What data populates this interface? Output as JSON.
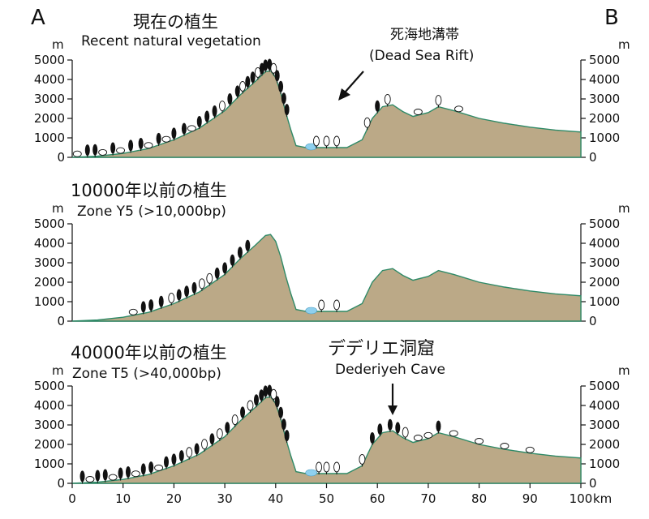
{
  "labels": {
    "left_letter": "A",
    "right_letter": "B",
    "x_unit": "km",
    "y_unit": "m"
  },
  "panels": [
    {
      "title_jp": "現在の植生",
      "title_en": "Recent natural vegetation",
      "annotation_jp": "死海地溝帯",
      "annotation_en": "(Dead Sea Rift)"
    },
    {
      "title_jp": "10000年以前の植生",
      "title_en": "Zone Y5 (>10,000bp)"
    },
    {
      "title_jp": "40000年以前の植生",
      "title_en": "Zone T5 (>40,000bp)",
      "annotation_jp": "デデリエ洞窟",
      "annotation_en": "Dederiyeh Cave"
    }
  ],
  "chart_data": {
    "type": "area",
    "xlabel": "km",
    "ylabel": "m",
    "xlim": [
      0,
      100
    ],
    "ylim": [
      0,
      5000
    ],
    "x_ticks": [
      "0",
      "10",
      "20",
      "30",
      "40",
      "50",
      "60",
      "70",
      "80",
      "90",
      "100"
    ],
    "y_ticks": [
      "0",
      "1000",
      "2000",
      "3000",
      "4000",
      "5000"
    ],
    "profile": {
      "x": [
        0,
        5,
        10,
        15,
        20,
        25,
        30,
        33,
        36,
        38,
        39,
        40,
        41,
        42,
        43,
        44,
        46,
        48,
        50,
        54,
        57,
        59,
        61,
        63,
        65,
        67,
        70,
        72,
        75,
        80,
        85,
        90,
        95,
        100
      ],
      "elevation": [
        0,
        60,
        200,
        450,
        900,
        1500,
        2400,
        3200,
        3900,
        4400,
        4450,
        4100,
        3300,
        2300,
        1400,
        600,
        500,
        500,
        500,
        500,
        900,
        2000,
        2600,
        2700,
        2350,
        2100,
        2300,
        2600,
        2400,
        2000,
        1750,
        1550,
        1400,
        1300
      ]
    },
    "water_x": [
      47
    ]
  },
  "colors": {
    "terrain": "#bba987",
    "terrain_outline": "#2f8a67",
    "water": "#8fd0ee",
    "deciduous_tree": "#ffffff",
    "conifer_tree": "#111111"
  },
  "vegetation": {
    "panel_1": [
      {
        "x": 1,
        "type": "shrub"
      },
      {
        "x": 3,
        "type": "conifer"
      },
      {
        "x": 4.5,
        "type": "conifer"
      },
      {
        "x": 6,
        "type": "shrub"
      },
      {
        "x": 8,
        "type": "conifer"
      },
      {
        "x": 9.5,
        "type": "shrub"
      },
      {
        "x": 11.5,
        "type": "conifer"
      },
      {
        "x": 13.5,
        "type": "conifer"
      },
      {
        "x": 15,
        "type": "shrub"
      },
      {
        "x": 17,
        "type": "conifer"
      },
      {
        "x": 18.5,
        "type": "shrub"
      },
      {
        "x": 20,
        "type": "conifer"
      },
      {
        "x": 22,
        "type": "conifer"
      },
      {
        "x": 23.5,
        "type": "shrub"
      },
      {
        "x": 25,
        "type": "conifer"
      },
      {
        "x": 26.5,
        "type": "conifer"
      },
      {
        "x": 28,
        "type": "conifer"
      },
      {
        "x": 29.5,
        "type": "deciduous"
      },
      {
        "x": 31,
        "type": "conifer"
      },
      {
        "x": 32.5,
        "type": "conifer"
      },
      {
        "x": 33.5,
        "type": "deciduous"
      },
      {
        "x": 34.5,
        "type": "conifer"
      },
      {
        "x": 35.5,
        "type": "conifer"
      },
      {
        "x": 36.5,
        "type": "deciduous"
      },
      {
        "x": 37.3,
        "type": "conifer"
      },
      {
        "x": 38,
        "type": "conifer"
      },
      {
        "x": 38.8,
        "type": "conifer"
      },
      {
        "x": 39.6,
        "type": "deciduous"
      },
      {
        "x": 40.3,
        "type": "conifer"
      },
      {
        "x": 41,
        "type": "conifer"
      },
      {
        "x": 41.6,
        "type": "conifer"
      },
      {
        "x": 42.2,
        "type": "conifer"
      },
      {
        "x": 48,
        "type": "deciduous"
      },
      {
        "x": 50,
        "type": "deciduous"
      },
      {
        "x": 52,
        "type": "deciduous"
      },
      {
        "x": 58,
        "type": "deciduous"
      },
      {
        "x": 60,
        "type": "conifer"
      },
      {
        "x": 62,
        "type": "deciduous"
      },
      {
        "x": 68,
        "type": "shrub"
      },
      {
        "x": 72,
        "type": "deciduous"
      },
      {
        "x": 76,
        "type": "shrub"
      }
    ],
    "panel_2": [
      {
        "x": 12,
        "type": "shrub"
      },
      {
        "x": 14,
        "type": "conifer"
      },
      {
        "x": 15.5,
        "type": "conifer"
      },
      {
        "x": 17.5,
        "type": "conifer"
      },
      {
        "x": 19.5,
        "type": "deciduous"
      },
      {
        "x": 21,
        "type": "conifer"
      },
      {
        "x": 22.5,
        "type": "conifer"
      },
      {
        "x": 24,
        "type": "conifer"
      },
      {
        "x": 25.5,
        "type": "deciduous"
      },
      {
        "x": 27,
        "type": "deciduous"
      },
      {
        "x": 28.5,
        "type": "conifer"
      },
      {
        "x": 30,
        "type": "conifer"
      },
      {
        "x": 31.5,
        "type": "conifer"
      },
      {
        "x": 33,
        "type": "conifer"
      },
      {
        "x": 34.5,
        "type": "conifer"
      },
      {
        "x": 49,
        "type": "deciduous"
      },
      {
        "x": 52,
        "type": "deciduous"
      }
    ],
    "panel_3": [
      {
        "x": 2,
        "type": "conifer"
      },
      {
        "x": 3.5,
        "type": "shrub"
      },
      {
        "x": 5,
        "type": "conifer"
      },
      {
        "x": 6.5,
        "type": "conifer"
      },
      {
        "x": 8,
        "type": "shrub"
      },
      {
        "x": 9.5,
        "type": "conifer"
      },
      {
        "x": 11,
        "type": "conifer"
      },
      {
        "x": 12.5,
        "type": "shrub"
      },
      {
        "x": 14,
        "type": "conifer"
      },
      {
        "x": 15.5,
        "type": "conifer"
      },
      {
        "x": 17,
        "type": "shrub"
      },
      {
        "x": 18.5,
        "type": "conifer"
      },
      {
        "x": 20,
        "type": "conifer"
      },
      {
        "x": 21.5,
        "type": "conifer"
      },
      {
        "x": 23,
        "type": "deciduous"
      },
      {
        "x": 24.5,
        "type": "conifer"
      },
      {
        "x": 26,
        "type": "deciduous"
      },
      {
        "x": 27.5,
        "type": "conifer"
      },
      {
        "x": 29,
        "type": "deciduous"
      },
      {
        "x": 30.5,
        "type": "conifer"
      },
      {
        "x": 32,
        "type": "deciduous"
      },
      {
        "x": 33.5,
        "type": "conifer"
      },
      {
        "x": 35,
        "type": "deciduous"
      },
      {
        "x": 36.2,
        "type": "conifer"
      },
      {
        "x": 37.2,
        "type": "conifer"
      },
      {
        "x": 38,
        "type": "conifer"
      },
      {
        "x": 38.8,
        "type": "conifer"
      },
      {
        "x": 39.6,
        "type": "deciduous"
      },
      {
        "x": 40.3,
        "type": "conifer"
      },
      {
        "x": 41,
        "type": "conifer"
      },
      {
        "x": 41.6,
        "type": "conifer"
      },
      {
        "x": 42.2,
        "type": "conifer"
      },
      {
        "x": 48.5,
        "type": "deciduous"
      },
      {
        "x": 50,
        "type": "deciduous"
      },
      {
        "x": 52,
        "type": "deciduous"
      },
      {
        "x": 57,
        "type": "deciduous"
      },
      {
        "x": 59,
        "type": "conifer"
      },
      {
        "x": 60.5,
        "type": "conifer"
      },
      {
        "x": 62.5,
        "type": "conifer"
      },
      {
        "x": 64,
        "type": "conifer"
      },
      {
        "x": 65.5,
        "type": "deciduous"
      },
      {
        "x": 68,
        "type": "shrub"
      },
      {
        "x": 70,
        "type": "shrub"
      },
      {
        "x": 72,
        "type": "conifer"
      },
      {
        "x": 75,
        "type": "shrub"
      },
      {
        "x": 80,
        "type": "shrub"
      },
      {
        "x": 85,
        "type": "shrub"
      },
      {
        "x": 90,
        "type": "shrub"
      }
    ]
  }
}
